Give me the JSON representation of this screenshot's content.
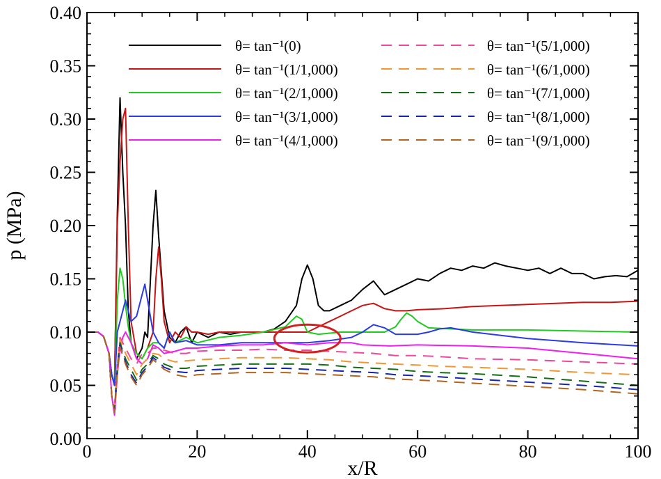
{
  "chart_data": {
    "type": "line",
    "xlabel": "x/R",
    "ylabel": "p (MPa)",
    "xlim": [
      0,
      100
    ],
    "ylim": [
      0,
      0.4
    ],
    "xticks": [
      0,
      20,
      40,
      60,
      80,
      100
    ],
    "xtick_labels": [
      "0",
      "20",
      "40",
      "60",
      "80",
      "100"
    ],
    "yticks": [
      0,
      0.05,
      0.1,
      0.15,
      0.2,
      0.25,
      0.3,
      0.35,
      0.4
    ],
    "ytick_labels": [
      "0.00",
      "0.05",
      "0.10",
      "0.15",
      "0.20",
      "0.25",
      "0.30",
      "0.35",
      "0.40"
    ],
    "legend_position": "top",
    "annotation": {
      "type": "ellipse",
      "color": "#d42020",
      "center": [
        40,
        0.094
      ],
      "radius": [
        6.0,
        0.013
      ]
    },
    "series": [
      {
        "name": "θ= tan⁻¹(0)",
        "color": "#000000",
        "dash": "solid",
        "x": [
          0,
          2,
          3,
          4,
          4.5,
          5,
          5.5,
          6,
          6.5,
          7,
          7.5,
          8,
          9,
          10,
          10.5,
          11,
          12,
          12.5,
          13,
          14,
          15,
          16,
          17,
          18,
          19,
          20,
          22,
          24,
          26,
          28,
          30,
          32,
          34,
          36,
          38,
          39,
          40,
          41,
          42,
          43,
          44,
          46,
          48,
          50,
          52,
          54,
          56,
          58,
          60,
          62,
          64,
          66,
          68,
          70,
          72,
          74,
          76,
          78,
          80,
          82,
          84,
          86,
          88,
          90,
          92,
          94,
          96,
          98,
          100
        ],
        "y": [
          0.1,
          0.1,
          0.096,
          0.08,
          0.06,
          0.05,
          0.21,
          0.32,
          0.25,
          0.2,
          0.12,
          0.09,
          0.075,
          0.085,
          0.1,
          0.095,
          0.2,
          0.233,
          0.19,
          0.12,
          0.095,
          0.09,
          0.1,
          0.105,
          0.09,
          0.1,
          0.095,
          0.1,
          0.098,
          0.1,
          0.1,
          0.1,
          0.103,
          0.11,
          0.125,
          0.15,
          0.163,
          0.15,
          0.125,
          0.12,
          0.12,
          0.125,
          0.13,
          0.14,
          0.148,
          0.135,
          0.14,
          0.145,
          0.15,
          0.148,
          0.155,
          0.16,
          0.158,
          0.162,
          0.16,
          0.165,
          0.162,
          0.16,
          0.158,
          0.16,
          0.155,
          0.16,
          0.155,
          0.155,
          0.15,
          0.152,
          0.153,
          0.152,
          0.158
        ]
      },
      {
        "name": "θ= tan⁻¹(1/1,000)",
        "color": "#c81414",
        "dash": "solid",
        "x": [
          0,
          2,
          3,
          4,
          4.5,
          5,
          5.5,
          6,
          6.5,
          7,
          7.5,
          8,
          9,
          10,
          11,
          12,
          12.5,
          13,
          13.5,
          14,
          15,
          16,
          17,
          18,
          19,
          20,
          22,
          24,
          26,
          28,
          30,
          32,
          34,
          36,
          38,
          40,
          42,
          44,
          46,
          48,
          50,
          52,
          54,
          56,
          58,
          60,
          65,
          70,
          75,
          80,
          85,
          90,
          95,
          100
        ],
        "y": [
          0.1,
          0.1,
          0.096,
          0.08,
          0.06,
          0.05,
          0.2,
          0.26,
          0.3,
          0.31,
          0.2,
          0.11,
          0.08,
          0.075,
          0.085,
          0.1,
          0.15,
          0.18,
          0.15,
          0.11,
          0.09,
          0.1,
          0.095,
          0.105,
          0.1,
          0.1,
          0.098,
          0.1,
          0.1,
          0.1,
          0.1,
          0.1,
          0.1,
          0.1,
          0.1,
          0.1,
          0.105,
          0.11,
          0.115,
          0.12,
          0.125,
          0.127,
          0.122,
          0.12,
          0.12,
          0.121,
          0.122,
          0.124,
          0.125,
          0.126,
          0.127,
          0.128,
          0.128,
          0.129
        ]
      },
      {
        "name": "θ= tan⁻¹(2/1,000)",
        "color": "#1ecb1e",
        "dash": "solid",
        "x": [
          0,
          2,
          3,
          4,
          4.5,
          5,
          5.5,
          6,
          6.5,
          7,
          7.5,
          8,
          9,
          10,
          11,
          12,
          13,
          14,
          15,
          16,
          18,
          20,
          24,
          28,
          32,
          36,
          37,
          38,
          39,
          40,
          42,
          46,
          50,
          54,
          56,
          57,
          58,
          59,
          60,
          62,
          66,
          70,
          80,
          90,
          100
        ],
        "y": [
          0.1,
          0.1,
          0.096,
          0.08,
          0.06,
          0.05,
          0.13,
          0.16,
          0.15,
          0.125,
          0.105,
          0.09,
          0.08,
          0.075,
          0.085,
          0.09,
          0.09,
          0.085,
          0.1,
          0.09,
          0.095,
          0.09,
          0.095,
          0.097,
          0.1,
          0.105,
          0.11,
          0.115,
          0.112,
          0.1,
          0.098,
          0.1,
          0.1,
          0.1,
          0.105,
          0.112,
          0.118,
          0.115,
          0.11,
          0.104,
          0.103,
          0.102,
          0.102,
          0.101,
          0.1
        ]
      },
      {
        "name": "θ= tan⁻¹(3/1,000)",
        "color": "#2b3be6",
        "dash": "solid",
        "x": [
          0,
          2,
          3,
          4,
          4.5,
          5,
          5.5,
          6,
          6.5,
          7,
          8,
          9,
          10,
          10.5,
          11,
          12,
          13,
          14,
          15,
          16,
          18,
          20,
          24,
          28,
          32,
          36,
          40,
          44,
          48,
          50,
          52,
          54,
          56,
          60,
          62,
          64,
          66,
          68,
          70,
          80,
          90,
          100
        ],
        "y": [
          0.1,
          0.1,
          0.096,
          0.08,
          0.06,
          0.05,
          0.1,
          0.11,
          0.12,
          0.13,
          0.11,
          0.115,
          0.135,
          0.145,
          0.13,
          0.1,
          0.09,
          0.085,
          0.1,
          0.09,
          0.092,
          0.088,
          0.088,
          0.09,
          0.09,
          0.09,
          0.09,
          0.092,
          0.095,
          0.1,
          0.107,
          0.104,
          0.098,
          0.098,
          0.1,
          0.103,
          0.104,
          0.102,
          0.1,
          0.094,
          0.09,
          0.087
        ]
      },
      {
        "name": "θ= tan⁻¹(4/1,000)",
        "color": "#f01ef0",
        "dash": "solid",
        "x": [
          0,
          2,
          3,
          4,
          4.5,
          5,
          5.5,
          6,
          6.5,
          7,
          8,
          9,
          10,
          11,
          12,
          13,
          14,
          16,
          18,
          20,
          24,
          28,
          32,
          36,
          40,
          44,
          48,
          50,
          55,
          60,
          70,
          80,
          90,
          100
        ],
        "y": [
          0.1,
          0.1,
          0.096,
          0.08,
          0.04,
          0.022,
          0.06,
          0.085,
          0.095,
          0.1,
          0.09,
          0.075,
          0.07,
          0.075,
          0.088,
          0.085,
          0.08,
          0.082,
          0.085,
          0.085,
          0.087,
          0.088,
          0.088,
          0.09,
          0.088,
          0.09,
          0.09,
          0.088,
          0.087,
          0.088,
          0.087,
          0.085,
          0.08,
          0.075
        ]
      },
      {
        "name": "θ= tan⁻¹(5/1,000)",
        "color": "#f0469b",
        "dash": "dashed",
        "x": [
          0,
          2,
          3,
          4,
          4.5,
          5,
          5.5,
          6,
          7,
          8,
          9,
          10,
          11,
          12,
          13,
          14,
          16,
          18,
          20,
          24,
          28,
          32,
          36,
          40,
          44,
          48,
          52,
          56,
          60,
          64,
          70,
          80,
          90,
          100
        ],
        "y": [
          0.1,
          0.1,
          0.096,
          0.08,
          0.04,
          0.03,
          0.07,
          0.095,
          0.085,
          0.075,
          0.07,
          0.08,
          0.08,
          0.085,
          0.085,
          0.083,
          0.08,
          0.08,
          0.082,
          0.083,
          0.083,
          0.084,
          0.083,
          0.083,
          0.082,
          0.081,
          0.08,
          0.078,
          0.078,
          0.077,
          0.075,
          0.074,
          0.072,
          0.07
        ]
      },
      {
        "name": "θ= tan⁻¹(6/1,000)",
        "color": "#f09632",
        "dash": "dashed",
        "x": [
          0,
          2,
          3,
          4,
          4.5,
          5,
          5.5,
          6,
          7,
          8,
          9,
          10,
          11,
          12,
          13,
          14,
          16,
          18,
          20,
          24,
          28,
          32,
          36,
          40,
          44,
          48,
          52,
          56,
          60,
          64,
          70,
          80,
          90,
          100
        ],
        "y": [
          0.1,
          0.1,
          0.096,
          0.08,
          0.04,
          0.028,
          0.068,
          0.093,
          0.08,
          0.07,
          0.06,
          0.07,
          0.075,
          0.08,
          0.079,
          0.075,
          0.072,
          0.073,
          0.074,
          0.075,
          0.076,
          0.076,
          0.076,
          0.075,
          0.074,
          0.072,
          0.071,
          0.07,
          0.069,
          0.068,
          0.067,
          0.065,
          0.062,
          0.06
        ]
      },
      {
        "name": "θ= tan⁻¹(7/1,000)",
        "color": "#146e14",
        "dash": "dashed",
        "x": [
          0,
          2,
          3,
          4,
          4.5,
          5,
          5.5,
          6,
          7,
          8,
          9,
          10,
          11,
          12,
          13,
          14,
          16,
          18,
          20,
          24,
          28,
          32,
          36,
          40,
          44,
          48,
          52,
          56,
          60,
          64,
          70,
          80,
          90,
          100
        ],
        "y": [
          0.1,
          0.1,
          0.096,
          0.08,
          0.04,
          0.027,
          0.066,
          0.09,
          0.075,
          0.065,
          0.055,
          0.065,
          0.07,
          0.078,
          0.075,
          0.07,
          0.066,
          0.066,
          0.068,
          0.069,
          0.07,
          0.07,
          0.07,
          0.07,
          0.069,
          0.067,
          0.066,
          0.065,
          0.063,
          0.062,
          0.061,
          0.058,
          0.054,
          0.05
        ]
      },
      {
        "name": "θ= tan⁻¹(8/1,000)",
        "color": "#1423b4",
        "dash": "dashed",
        "x": [
          0,
          2,
          3,
          4,
          4.5,
          5,
          5.5,
          6,
          7,
          8,
          9,
          10,
          11,
          12,
          13,
          14,
          16,
          18,
          20,
          24,
          28,
          32,
          36,
          40,
          44,
          48,
          52,
          56,
          60,
          64,
          70,
          80,
          90,
          100
        ],
        "y": [
          0.1,
          0.1,
          0.096,
          0.08,
          0.04,
          0.026,
          0.064,
          0.088,
          0.072,
          0.06,
          0.052,
          0.062,
          0.068,
          0.076,
          0.072,
          0.067,
          0.063,
          0.062,
          0.064,
          0.065,
          0.066,
          0.066,
          0.066,
          0.065,
          0.064,
          0.063,
          0.062,
          0.06,
          0.059,
          0.058,
          0.056,
          0.053,
          0.05,
          0.046
        ]
      },
      {
        "name": "θ= tan⁻¹(9/1,000)",
        "color": "#b4641e",
        "dash": "dashed",
        "x": [
          0,
          2,
          3,
          4,
          4.5,
          5,
          5.5,
          6,
          7,
          8,
          9,
          10,
          11,
          12,
          13,
          14,
          16,
          18,
          20,
          24,
          28,
          32,
          36,
          40,
          44,
          48,
          52,
          56,
          60,
          64,
          70,
          80,
          90,
          100
        ],
        "y": [
          0.1,
          0.1,
          0.096,
          0.08,
          0.04,
          0.025,
          0.062,
          0.086,
          0.07,
          0.058,
          0.05,
          0.06,
          0.066,
          0.074,
          0.07,
          0.065,
          0.06,
          0.058,
          0.06,
          0.061,
          0.062,
          0.062,
          0.062,
          0.061,
          0.06,
          0.059,
          0.058,
          0.056,
          0.055,
          0.054,
          0.052,
          0.049,
          0.046,
          0.042
        ]
      }
    ]
  }
}
